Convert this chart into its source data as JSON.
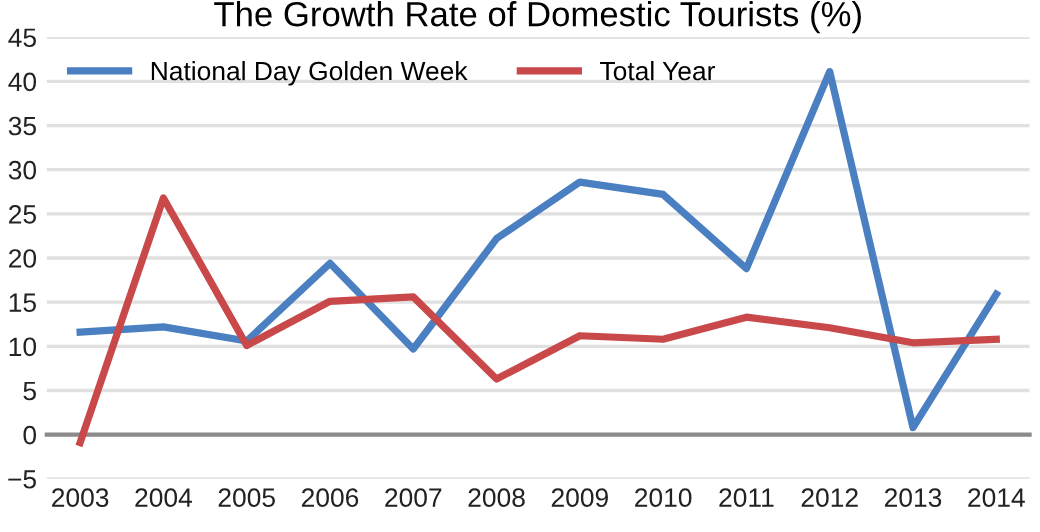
{
  "chart_data": {
    "type": "line",
    "title": "The Growth Rate of Domestic Tourists (%)",
    "categories": [
      "2003",
      "2004",
      "2005",
      "2006",
      "2007",
      "2008",
      "2009",
      "2010",
      "2011",
      "2012",
      "2013",
      "2014"
    ],
    "series": [
      {
        "name": "National Day Golden Week",
        "color": "#4a7fc1",
        "values": [
          11.6,
          12.2,
          10.6,
          19.4,
          9.7,
          22.2,
          28.6,
          27.2,
          18.8,
          41.1,
          0.8,
          15.9
        ]
      },
      {
        "name": "Total Year",
        "color": "#c9494b",
        "values": [
          -0.9,
          26.8,
          10.1,
          15.1,
          15.6,
          6.3,
          11.2,
          10.8,
          13.3,
          12.1,
          10.4,
          10.8
        ]
      }
    ],
    "ylim": [
      -5,
      45
    ],
    "yticks": [
      {
        "value": -5,
        "label": "−5"
      },
      0,
      5,
      10,
      15,
      20,
      25,
      30,
      35,
      40,
      45
    ],
    "grid": "y",
    "legend": "top left",
    "marker": "none",
    "line_style": "solid"
  }
}
